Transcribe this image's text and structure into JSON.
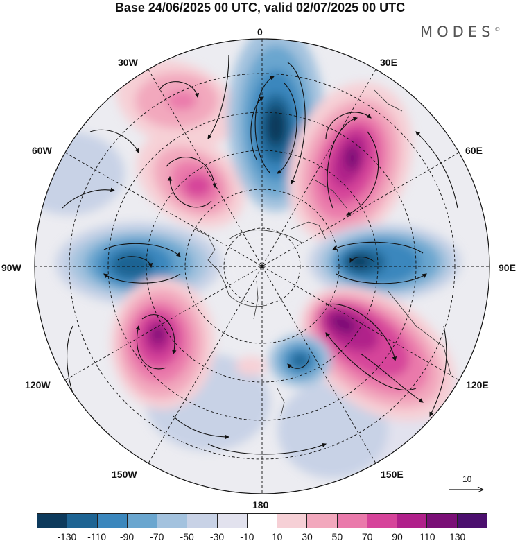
{
  "title": "Base 24/06/2025 00 UTC, valid 02/07/2025 00 UTC",
  "brand": "MODES",
  "brand_mark": "©",
  "lon_labels": {
    "top": "0",
    "top_left": "30W",
    "top_right": "30E",
    "mid_upper_left": "60W",
    "mid_upper_right": "60E",
    "left": "90W",
    "right": "90E",
    "mid_lower_left": "120W",
    "mid_lower_right": "120E",
    "bottom_left": "150W",
    "bottom_right": "150E",
    "bottom": "180"
  },
  "reference_vector_label": "10",
  "colorbar": {
    "ticks": [
      "-130",
      "-110",
      "-90",
      "-70",
      "-50",
      "-30",
      "-10",
      "10",
      "30",
      "50",
      "70",
      "90",
      "110",
      "130"
    ],
    "colors": [
      "#0d3a5c",
      "#1e6493",
      "#3b87bd",
      "#6aa6cf",
      "#a3c2de",
      "#c8d2e6",
      "#e2e2ee",
      "#ffffff",
      "#f6d0d6",
      "#f2a8bd",
      "#ea7aab",
      "#d6449a",
      "#b0208a",
      "#7a0f76",
      "#4b0f6e"
    ]
  }
}
